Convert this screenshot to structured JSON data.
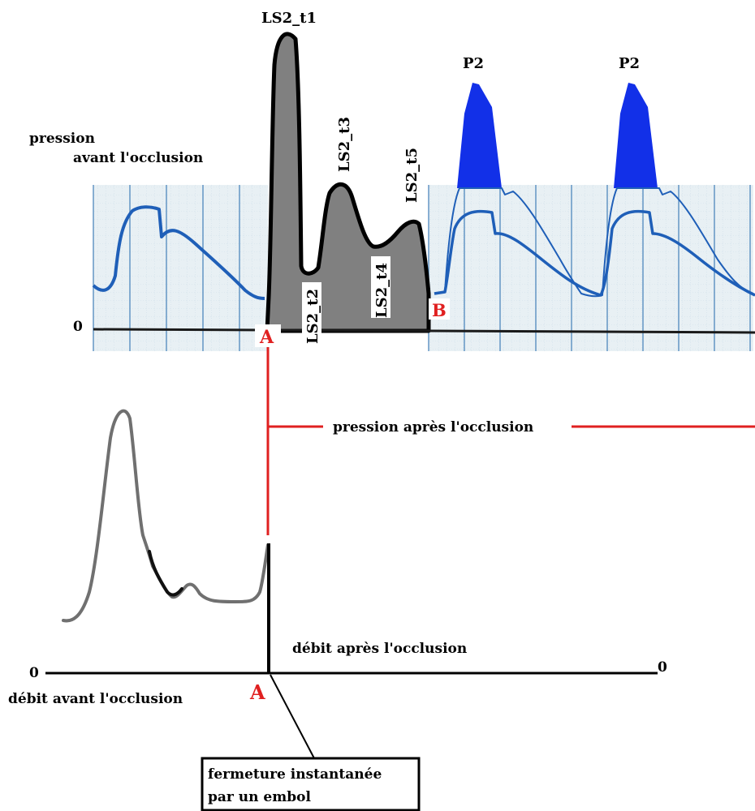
{
  "pressure": {
    "before_label_line1": "pression",
    "before_label_line2": "avant l'occlusion",
    "zero_label": "0",
    "peak_labels": {
      "t1": "LS2_t1",
      "t2": "LS2_t2",
      "t3": "LS2_t3",
      "t4": "LS2_t4",
      "t5": "LS2_t5"
    },
    "p2_label": "P2",
    "point_a": "A",
    "point_b": "B",
    "after_label": "pression après l'occlusion"
  },
  "flow": {
    "before_label": "débit  avant l'occlusion",
    "after_label": "débit  après l'occlusion",
    "zero_left": "0",
    "zero_right": "0",
    "point_a": "A"
  },
  "callout": {
    "line1": "fermeture instantanée",
    "line2": "par un embol"
  },
  "colors": {
    "grid_bg": "#e8f0f4",
    "grid_line": "#5a8fc0",
    "trace_blue": "#1f5fb8",
    "p2_fill": "#1230e8",
    "gray_fill": "#808080",
    "red": "#e02020"
  }
}
